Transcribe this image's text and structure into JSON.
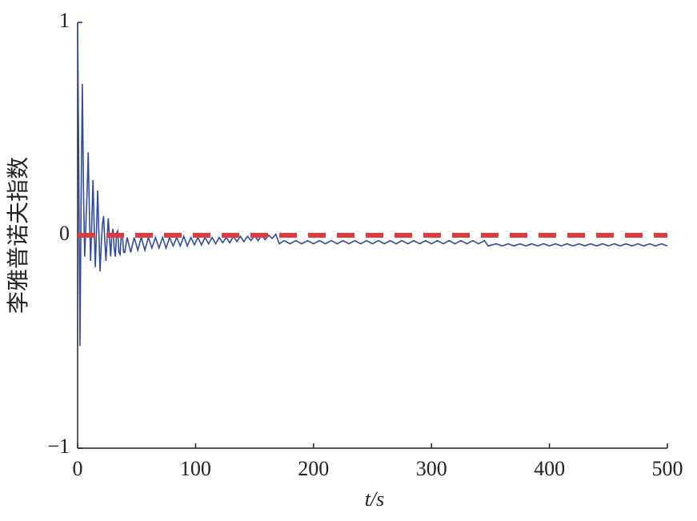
{
  "chart_data": {
    "type": "line",
    "xlabel": "t/s",
    "ylabel": "李雅普诺夫指数",
    "xlim": [
      0,
      500
    ],
    "ylim": [
      -1,
      1
    ],
    "xticks": [
      0,
      100,
      200,
      300,
      400,
      500
    ],
    "yticks": [
      {
        "value": -1,
        "label": "−1"
      },
      0,
      1
    ],
    "grid": false,
    "series": [
      {
        "color": "#2f4c9e",
        "dashed": false,
        "x": [
          0,
          1,
          2,
          3,
          4,
          5,
          6,
          7,
          8,
          9,
          10,
          11,
          12,
          13,
          14,
          15,
          16,
          17,
          18,
          19,
          20,
          21,
          22,
          23,
          24,
          25,
          26,
          27,
          28,
          29,
          30,
          31,
          32,
          33,
          34,
          35,
          36,
          37,
          38,
          39,
          40,
          42,
          45,
          48,
          51,
          54,
          57,
          60,
          63,
          66,
          69,
          72,
          75,
          78,
          81,
          84,
          87,
          90,
          93,
          96,
          99,
          102,
          105,
          108,
          111,
          114,
          117,
          120,
          123,
          126,
          129,
          132,
          135,
          138,
          141,
          144,
          147,
          150,
          153,
          156,
          159,
          162,
          165,
          168,
          171,
          175,
          180,
          185,
          190,
          195,
          200,
          205,
          210,
          215,
          220,
          225,
          230,
          235,
          240,
          245,
          250,
          255,
          260,
          265,
          270,
          275,
          280,
          285,
          290,
          295,
          300,
          305,
          310,
          315,
          320,
          325,
          330,
          335,
          340,
          345,
          348,
          355,
          360,
          365,
          370,
          375,
          380,
          385,
          390,
          395,
          400,
          405,
          410,
          415,
          420,
          425,
          430,
          435,
          440,
          445,
          450,
          455,
          460,
          465,
          470,
          475,
          480,
          485,
          490,
          495,
          500
        ],
        "values": [
          1.0,
          0.3,
          -0.52,
          0.2,
          0.71,
          0.2,
          -0.1,
          0.05,
          0.2,
          0.39,
          0.1,
          -0.12,
          0.05,
          0.26,
          0.05,
          -0.15,
          0.02,
          0.21,
          0.02,
          -0.17,
          -0.05,
          0.05,
          0.09,
          -0.02,
          -0.12,
          -0.02,
          0.08,
          -0.01,
          -0.1,
          0.0,
          0.03,
          -0.06,
          -0.1,
          0.01,
          0.02,
          -0.08,
          -0.09,
          0.0,
          0.0,
          -0.08,
          -0.08,
          -0.01,
          -0.08,
          -0.01,
          -0.07,
          -0.01,
          -0.07,
          -0.01,
          -0.06,
          -0.01,
          -0.06,
          -0.01,
          -0.06,
          -0.01,
          -0.05,
          -0.01,
          -0.05,
          -0.005,
          -0.05,
          -0.01,
          -0.045,
          -0.01,
          -0.045,
          -0.01,
          -0.04,
          -0.01,
          -0.04,
          -0.01,
          -0.035,
          -0.01,
          -0.035,
          -0.005,
          -0.03,
          -0.005,
          -0.03,
          -0.005,
          -0.025,
          0.0,
          -0.025,
          0.0,
          -0.02,
          0.0,
          -0.015,
          0.005,
          -0.04,
          -0.025,
          -0.04,
          -0.025,
          -0.04,
          -0.025,
          -0.04,
          -0.025,
          -0.04,
          -0.025,
          -0.04,
          -0.025,
          -0.04,
          -0.025,
          -0.04,
          -0.025,
          -0.04,
          -0.025,
          -0.04,
          -0.025,
          -0.04,
          -0.025,
          -0.04,
          -0.025,
          -0.04,
          -0.025,
          -0.04,
          -0.025,
          -0.04,
          -0.025,
          -0.04,
          -0.025,
          -0.04,
          -0.025,
          -0.04,
          -0.025,
          -0.05,
          -0.04,
          -0.05,
          -0.04,
          -0.05,
          -0.04,
          -0.05,
          -0.04,
          -0.05,
          -0.04,
          -0.05,
          -0.04,
          -0.05,
          -0.04,
          -0.05,
          -0.04,
          -0.05,
          -0.04,
          -0.05,
          -0.04,
          -0.05,
          -0.04,
          -0.05,
          -0.04,
          -0.05,
          -0.04,
          -0.05,
          -0.04,
          -0.05,
          -0.04,
          -0.05
        ]
      },
      {
        "color": "#e03a3e",
        "dashed": true,
        "x": [
          0,
          500
        ],
        "values": [
          0,
          0
        ]
      }
    ]
  }
}
